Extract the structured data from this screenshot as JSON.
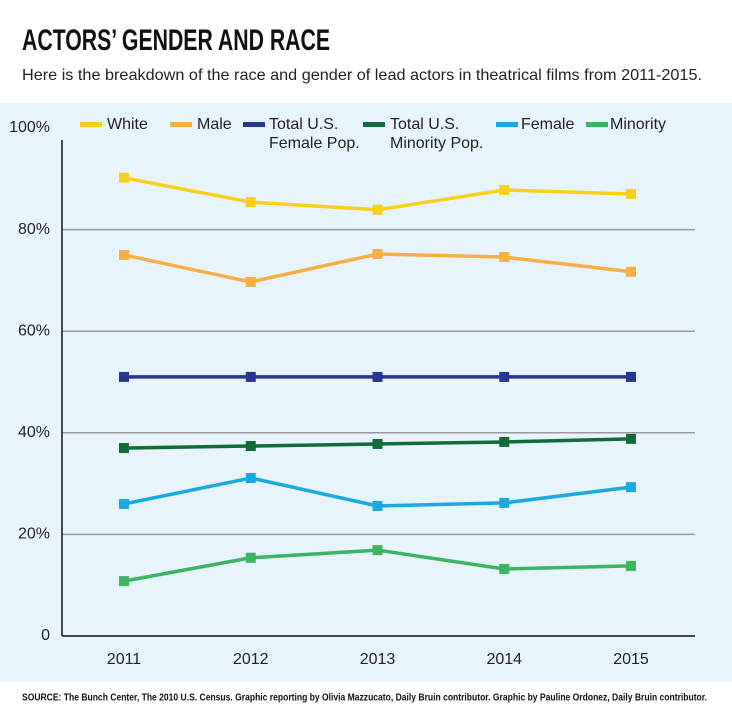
{
  "chart_data": {
    "type": "line",
    "title": "ACTORS’ GENDER AND RACE",
    "subtitle": "Here is the breakdown of the race and gender of lead actors in theatrical films from 2011-2015.",
    "source": "SOURCE: The Bunch Center, The 2010 U.S. Census. Graphic reporting by  Olivia Mazzucato, Daily Bruin contributor. Graphic by Pauline Ordonez, Daily Bruin contributor.",
    "categories": [
      "2011",
      "2012",
      "2013",
      "2014",
      "2015"
    ],
    "series": [
      {
        "name": "White",
        "color": "#f7d117",
        "values": [
          90.2,
          85.4,
          83.9,
          87.8,
          87.0
        ]
      },
      {
        "name": "Male",
        "color": "#f6ae45",
        "values": [
          75.0,
          69.7,
          75.2,
          74.6,
          71.7
        ]
      },
      {
        "name": "Total U.S. Female Pop.",
        "color": "#27368f",
        "values": [
          51,
          51,
          51,
          51,
          51
        ]
      },
      {
        "name": "Total U.S. Minority Pop.",
        "color": "#116b3a",
        "values": [
          37.0,
          37.4,
          37.8,
          38.2,
          38.8
        ]
      },
      {
        "name": "Female",
        "color": "#1ba9e1",
        "values": [
          26.0,
          31.1,
          25.6,
          26.2,
          29.3
        ]
      },
      {
        "name": "Minority",
        "color": "#3cb55e",
        "values": [
          10.8,
          15.4,
          16.9,
          13.2,
          13.8
        ]
      }
    ],
    "ylim": [
      0,
      100
    ],
    "yticks": [
      0,
      {
        "value": 20,
        "label": "20%"
      },
      {
        "value": 40,
        "label": "40%"
      },
      {
        "value": 60,
        "label": "60%"
      },
      {
        "value": 80,
        "label": "80%"
      },
      {
        "value": 100,
        "label": "100%"
      }
    ],
    "grid": true
  }
}
